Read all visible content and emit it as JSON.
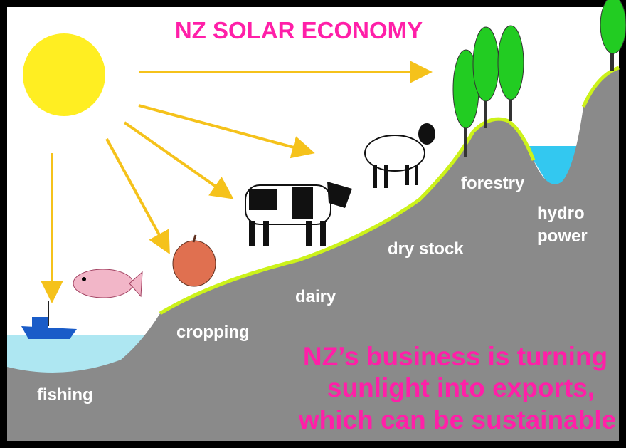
{
  "header": {
    "title": "NZ SOLAR ECONOMY"
  },
  "labels": {
    "fishing": "fishing",
    "cropping": "cropping",
    "dairy": "dairy",
    "dry_stock": "dry stock",
    "forestry": "forestry",
    "hydro_1": "hydro",
    "hydro_2": "power"
  },
  "caption": {
    "lines": [
      "NZ’s business is turning",
      "sunlight into exports,",
      "which can be sustainable"
    ]
  }
}
